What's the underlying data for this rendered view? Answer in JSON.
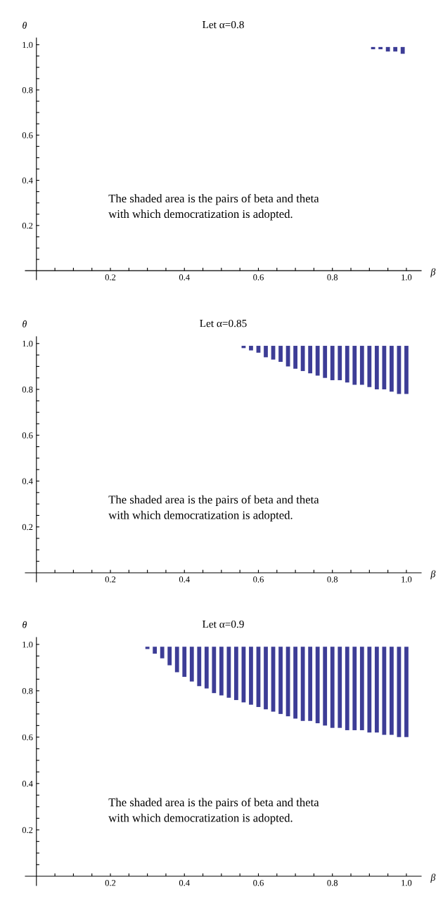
{
  "chart_data": [
    {
      "type": "bar",
      "title": "Let α=0.8",
      "xlabel": "β",
      "ylabel": "θ",
      "color": "#3d3d96",
      "x": [
        0.91,
        0.93,
        0.95,
        0.97,
        0.99
      ],
      "base": [
        0.98,
        0.98,
        0.97,
        0.97,
        0.96
      ],
      "values": [
        0.01,
        0.01,
        0.02,
        0.02,
        0.03
      ],
      "xlim": [
        -0.03,
        1.04
      ],
      "ylim": [
        -0.04,
        1.03
      ],
      "xticks": [
        {
          "value": 0.05,
          "label": null
        },
        {
          "value": 0.1,
          "label": null
        },
        {
          "value": 0.15,
          "label": null
        },
        0.2,
        {
          "value": 0.25,
          "label": null
        },
        {
          "value": 0.3,
          "label": null
        },
        {
          "value": 0.35,
          "label": null
        },
        0.4,
        {
          "value": 0.45,
          "label": null
        },
        {
          "value": 0.5,
          "label": null
        },
        {
          "value": 0.55,
          "label": null
        },
        0.6,
        {
          "value": 0.65,
          "label": null
        },
        {
          "value": 0.7,
          "label": null
        },
        {
          "value": 0.75,
          "label": null
        },
        0.8,
        {
          "value": 0.85,
          "label": null
        },
        {
          "value": 0.9,
          "label": null
        },
        {
          "value": 0.95,
          "label": null
        },
        {
          "value": 1.0,
          "label": "1.0"
        }
      ],
      "yticks": [
        {
          "value": 0.05,
          "label": null
        },
        {
          "value": 0.1,
          "label": null
        },
        {
          "value": 0.15,
          "label": null
        },
        0.2,
        {
          "value": 0.25,
          "label": null
        },
        {
          "value": 0.3,
          "label": null
        },
        {
          "value": 0.35,
          "label": null
        },
        0.4,
        {
          "value": 0.45,
          "label": null
        },
        {
          "value": 0.5,
          "label": null
        },
        {
          "value": 0.55,
          "label": null
        },
        0.6,
        {
          "value": 0.65,
          "label": null
        },
        {
          "value": 0.7,
          "label": null
        },
        {
          "value": 0.75,
          "label": null
        },
        0.8,
        {
          "value": 0.85,
          "label": null
        },
        {
          "value": 0.9,
          "label": null
        },
        {
          "value": 0.95,
          "label": null
        },
        {
          "value": 1.0,
          "label": "1.0"
        }
      ],
      "annotations": [
        "The shaded area is the pairs of beta and theta\nwith which democratization is adopted."
      ]
    },
    {
      "type": "bar",
      "title": "Let α=0.85",
      "xlabel": "β",
      "ylabel": "θ",
      "color": "#3d3d96",
      "x": [
        0.56,
        0.58,
        0.6,
        0.62,
        0.64,
        0.66,
        0.68,
        0.7,
        0.72,
        0.74,
        0.76,
        0.78,
        0.8,
        0.82,
        0.84,
        0.86,
        0.88,
        0.9,
        0.92,
        0.94,
        0.96,
        0.98,
        1.0
      ],
      "base": [
        0.98,
        0.97,
        0.96,
        0.94,
        0.93,
        0.92,
        0.9,
        0.89,
        0.88,
        0.87,
        0.86,
        0.85,
        0.84,
        0.84,
        0.83,
        0.82,
        0.82,
        0.81,
        0.8,
        0.8,
        0.79,
        0.78,
        0.78
      ],
      "values": [
        0.01,
        0.02,
        0.03,
        0.05,
        0.06,
        0.07,
        0.09,
        0.1,
        0.11,
        0.12,
        0.13,
        0.14,
        0.15,
        0.15,
        0.16,
        0.17,
        0.17,
        0.18,
        0.19,
        0.19,
        0.2,
        0.21,
        0.21
      ],
      "xlim": [
        -0.03,
        1.04
      ],
      "ylim": [
        -0.04,
        1.03
      ],
      "xticks": [
        {
          "value": 0.05,
          "label": null
        },
        {
          "value": 0.1,
          "label": null
        },
        {
          "value": 0.15,
          "label": null
        },
        0.2,
        {
          "value": 0.25,
          "label": null
        },
        {
          "value": 0.3,
          "label": null
        },
        {
          "value": 0.35,
          "label": null
        },
        0.4,
        {
          "value": 0.45,
          "label": null
        },
        {
          "value": 0.5,
          "label": null
        },
        {
          "value": 0.55,
          "label": null
        },
        0.6,
        {
          "value": 0.65,
          "label": null
        },
        {
          "value": 0.7,
          "label": null
        },
        {
          "value": 0.75,
          "label": null
        },
        0.8,
        {
          "value": 0.85,
          "label": null
        },
        {
          "value": 0.9,
          "label": null
        },
        {
          "value": 0.95,
          "label": null
        },
        {
          "value": 1.0,
          "label": "1.0"
        }
      ],
      "yticks": [
        {
          "value": 0.05,
          "label": null
        },
        {
          "value": 0.1,
          "label": null
        },
        {
          "value": 0.15,
          "label": null
        },
        0.2,
        {
          "value": 0.25,
          "label": null
        },
        {
          "value": 0.3,
          "label": null
        },
        {
          "value": 0.35,
          "label": null
        },
        0.4,
        {
          "value": 0.45,
          "label": null
        },
        {
          "value": 0.5,
          "label": null
        },
        {
          "value": 0.55,
          "label": null
        },
        0.6,
        {
          "value": 0.65,
          "label": null
        },
        {
          "value": 0.7,
          "label": null
        },
        {
          "value": 0.75,
          "label": null
        },
        0.8,
        {
          "value": 0.85,
          "label": null
        },
        {
          "value": 0.9,
          "label": null
        },
        {
          "value": 0.95,
          "label": null
        },
        {
          "value": 1.0,
          "label": "1.0"
        }
      ],
      "annotations": [
        "The shaded area is the pairs of beta and theta\nwith which democratization is adopted."
      ]
    },
    {
      "type": "bar",
      "title": "Let α=0.9",
      "xlabel": "β",
      "ylabel": "θ",
      "color": "#3d3d96",
      "x": [
        0.3,
        0.32,
        0.34,
        0.36,
        0.38,
        0.4,
        0.42,
        0.44,
        0.46,
        0.48,
        0.5,
        0.52,
        0.54,
        0.56,
        0.58,
        0.6,
        0.62,
        0.64,
        0.66,
        0.68,
        0.7,
        0.72,
        0.74,
        0.76,
        0.78,
        0.8,
        0.82,
        0.84,
        0.86,
        0.88,
        0.9,
        0.92,
        0.94,
        0.96,
        0.98,
        1.0
      ],
      "base": [
        0.98,
        0.96,
        0.94,
        0.91,
        0.88,
        0.86,
        0.84,
        0.82,
        0.81,
        0.79,
        0.78,
        0.77,
        0.76,
        0.75,
        0.74,
        0.73,
        0.72,
        0.71,
        0.7,
        0.69,
        0.68,
        0.67,
        0.67,
        0.66,
        0.65,
        0.64,
        0.64,
        0.63,
        0.63,
        0.63,
        0.62,
        0.62,
        0.61,
        0.61,
        0.6,
        0.6
      ],
      "values": [
        0.01,
        0.03,
        0.05,
        0.08,
        0.11,
        0.13,
        0.15,
        0.17,
        0.18,
        0.2,
        0.21,
        0.22,
        0.23,
        0.24,
        0.25,
        0.26,
        0.27,
        0.28,
        0.29,
        0.3,
        0.31,
        0.32,
        0.32,
        0.33,
        0.34,
        0.35,
        0.35,
        0.36,
        0.36,
        0.36,
        0.37,
        0.37,
        0.38,
        0.38,
        0.39,
        0.39
      ],
      "xlim": [
        -0.03,
        1.04
      ],
      "ylim": [
        -0.04,
        1.03
      ],
      "xticks": [
        {
          "value": 0.05,
          "label": null
        },
        {
          "value": 0.1,
          "label": null
        },
        {
          "value": 0.15,
          "label": null
        },
        0.2,
        {
          "value": 0.25,
          "label": null
        },
        {
          "value": 0.3,
          "label": null
        },
        {
          "value": 0.35,
          "label": null
        },
        0.4,
        {
          "value": 0.45,
          "label": null
        },
        {
          "value": 0.5,
          "label": null
        },
        {
          "value": 0.55,
          "label": null
        },
        0.6,
        {
          "value": 0.65,
          "label": null
        },
        {
          "value": 0.7,
          "label": null
        },
        {
          "value": 0.75,
          "label": null
        },
        0.8,
        {
          "value": 0.85,
          "label": null
        },
        {
          "value": 0.9,
          "label": null
        },
        {
          "value": 0.95,
          "label": null
        },
        {
          "value": 1.0,
          "label": "1.0"
        }
      ],
      "yticks": [
        {
          "value": 0.05,
          "label": null
        },
        {
          "value": 0.1,
          "label": null
        },
        {
          "value": 0.15,
          "label": null
        },
        0.2,
        {
          "value": 0.25,
          "label": null
        },
        {
          "value": 0.3,
          "label": null
        },
        {
          "value": 0.35,
          "label": null
        },
        0.4,
        {
          "value": 0.45,
          "label": null
        },
        {
          "value": 0.5,
          "label": null
        },
        {
          "value": 0.55,
          "label": null
        },
        0.6,
        {
          "value": 0.65,
          "label": null
        },
        {
          "value": 0.7,
          "label": null
        },
        {
          "value": 0.75,
          "label": null
        },
        0.8,
        {
          "value": 0.85,
          "label": null
        },
        {
          "value": 0.9,
          "label": null
        },
        {
          "value": 0.95,
          "label": null
        },
        {
          "value": 1.0,
          "label": "1.0"
        }
      ],
      "annotations": [
        "The shaded area is the pairs of beta and theta\nwith which democratization is adopted."
      ]
    }
  ]
}
